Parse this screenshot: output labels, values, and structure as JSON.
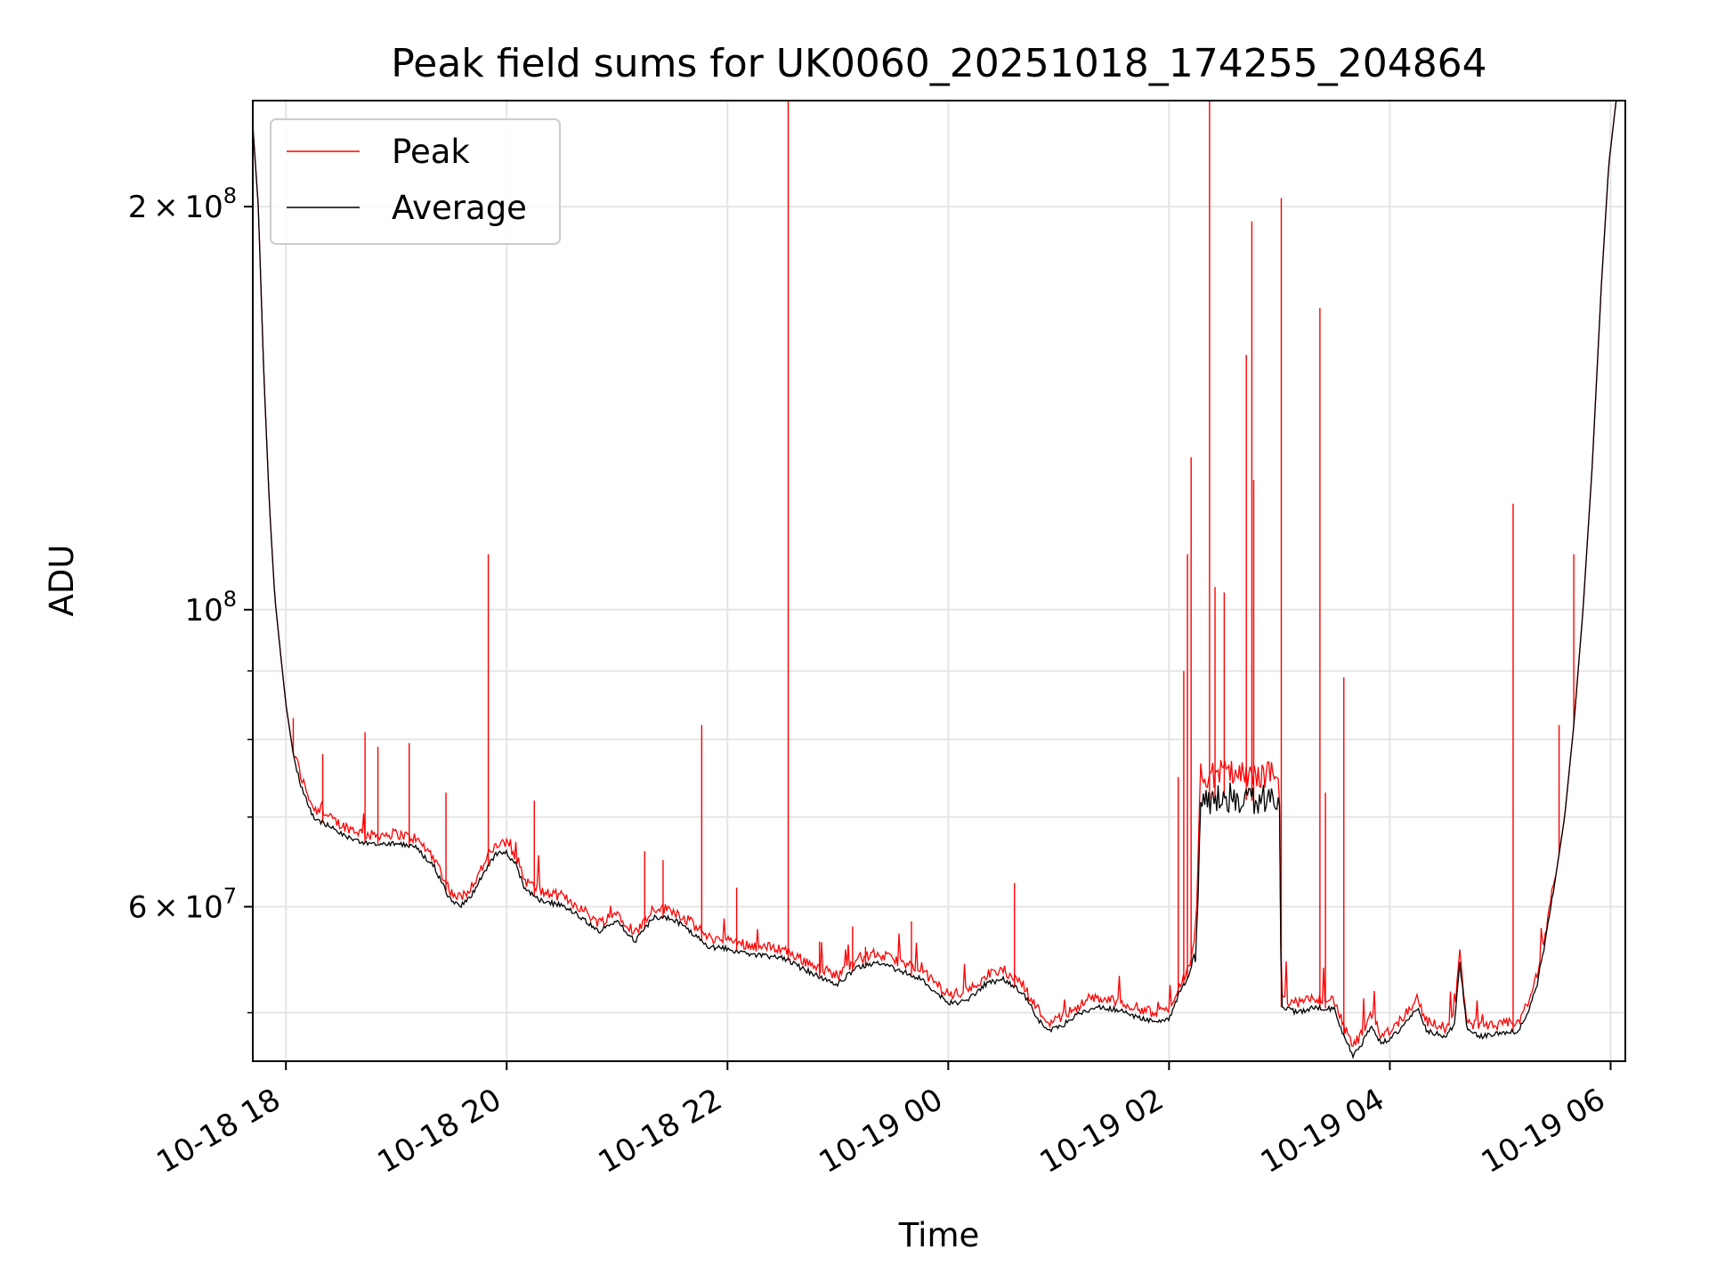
{
  "chart_data": {
    "type": "line",
    "title": "Peak field sums for UK0060_20251018_174255_204864",
    "xlabel": "Time",
    "ylabel": "ADU",
    "x_unit": "datetime",
    "xlim": [
      "2025-10-18 17:42",
      "2025-10-19 06:08"
    ],
    "ylim": [
      46000000,
      240000000
    ],
    "yscale": "log",
    "grid": true,
    "legend_position": "upper-left",
    "x_ticks": [
      {
        "t": "2025-10-18 18:00",
        "label": "10-18 18"
      },
      {
        "t": "2025-10-18 20:00",
        "label": "10-18 20"
      },
      {
        "t": "2025-10-18 22:00",
        "label": "10-18 22"
      },
      {
        "t": "2025-10-19 00:00",
        "label": "10-19 00"
      },
      {
        "t": "2025-10-19 02:00",
        "label": "10-19 02"
      },
      {
        "t": "2025-10-19 04:00",
        "label": "10-19 04"
      },
      {
        "t": "2025-10-19 06:00",
        "label": "10-19 06"
      }
    ],
    "y_major_ticks": [
      {
        "v": 60000000,
        "mantissa": "6",
        "exponent": "7"
      },
      {
        "v": 100000000,
        "mantissa": "",
        "exponent": "8"
      },
      {
        "v": 200000000,
        "mantissa": "2",
        "exponent": "8"
      }
    ],
    "y_minor_ticks": [
      50000000,
      70000000,
      80000000,
      90000000
    ],
    "series": [
      {
        "name": "Average",
        "color": "#000000",
        "points": [
          [
            "2025-10-18 17:42",
            230000000
          ],
          [
            "2025-10-18 17:45",
            200000000
          ],
          [
            "2025-10-18 17:48",
            150000000
          ],
          [
            "2025-10-18 17:51",
            120000000
          ],
          [
            "2025-10-18 17:54",
            102000000
          ],
          [
            "2025-10-18 17:57",
            93000000
          ],
          [
            "2025-10-18 18:00",
            85000000
          ],
          [
            "2025-10-18 18:04",
            78000000
          ],
          [
            "2025-10-18 18:08",
            74000000
          ],
          [
            "2025-10-18 18:15",
            70000000
          ],
          [
            "2025-10-18 18:30",
            68000000
          ],
          [
            "2025-10-18 18:45",
            66800000
          ],
          [
            "2025-10-18 19:00",
            67000000
          ],
          [
            "2025-10-18 19:10",
            66500000
          ],
          [
            "2025-10-18 19:20",
            64500000
          ],
          [
            "2025-10-18 19:30",
            60500000
          ],
          [
            "2025-10-18 19:35",
            60000000
          ],
          [
            "2025-10-18 19:42",
            61500000
          ],
          [
            "2025-10-18 19:50",
            64500000
          ],
          [
            "2025-10-18 19:55",
            65800000
          ],
          [
            "2025-10-18 20:00",
            65800000
          ],
          [
            "2025-10-18 20:05",
            64500000
          ],
          [
            "2025-10-18 20:10",
            61800000
          ],
          [
            "2025-10-18 20:20",
            60500000
          ],
          [
            "2025-10-18 20:30",
            60200000
          ],
          [
            "2025-10-18 20:40",
            59000000
          ],
          [
            "2025-10-18 20:50",
            57500000
          ],
          [
            "2025-10-18 21:00",
            58500000
          ],
          [
            "2025-10-18 21:10",
            56500000
          ],
          [
            "2025-10-18 21:20",
            59000000
          ],
          [
            "2025-10-18 21:30",
            58800000
          ],
          [
            "2025-10-18 21:40",
            57500000
          ],
          [
            "2025-10-18 21:50",
            56000000
          ],
          [
            "2025-10-18 22:00",
            55800000
          ],
          [
            "2025-10-18 22:15",
            55200000
          ],
          [
            "2025-10-18 22:30",
            55000000
          ],
          [
            "2025-10-18 22:40",
            54000000
          ],
          [
            "2025-10-18 22:50",
            53200000
          ],
          [
            "2025-10-18 23:00",
            52500000
          ],
          [
            "2025-10-18 23:10",
            54000000
          ],
          [
            "2025-10-18 23:20",
            54500000
          ],
          [
            "2025-10-18 23:30",
            54000000
          ],
          [
            "2025-10-18 23:45",
            53000000
          ],
          [
            "2025-10-19 00:00",
            50800000
          ],
          [
            "2025-10-19 00:10",
            51000000
          ],
          [
            "2025-10-19 00:20",
            52500000
          ],
          [
            "2025-10-19 00:30",
            53000000
          ],
          [
            "2025-10-19 00:40",
            51800000
          ],
          [
            "2025-10-19 00:50",
            49200000
          ],
          [
            "2025-10-19 00:55",
            48500000
          ],
          [
            "2025-10-19 01:00",
            48700000
          ],
          [
            "2025-10-19 01:10",
            49800000
          ],
          [
            "2025-10-19 01:20",
            50500000
          ],
          [
            "2025-10-19 01:30",
            50300000
          ],
          [
            "2025-10-19 01:40",
            49800000
          ],
          [
            "2025-10-19 01:50",
            49300000
          ],
          [
            "2025-10-19 02:00",
            49400000
          ],
          [
            "2025-10-19 02:05",
            51500000
          ],
          [
            "2025-10-19 02:10",
            53000000
          ],
          [
            "2025-10-19 02:15",
            56000000
          ],
          [
            "2025-10-19 02:17",
            72000000
          ],
          [
            "2025-10-19 02:30",
            72500000
          ],
          [
            "2025-10-19 02:45",
            72000000
          ],
          [
            "2025-10-19 03:00",
            72500000
          ],
          [
            "2025-10-19 03:01",
            50500000
          ],
          [
            "2025-10-19 03:10",
            50000000
          ],
          [
            "2025-10-19 03:20",
            50500000
          ],
          [
            "2025-10-19 03:30",
            50300000
          ],
          [
            "2025-10-19 03:35",
            48000000
          ],
          [
            "2025-10-19 03:40",
            46500000
          ],
          [
            "2025-10-19 03:45",
            47500000
          ],
          [
            "2025-10-19 03:50",
            49000000
          ],
          [
            "2025-10-19 03:55",
            47500000
          ],
          [
            "2025-10-19 04:00",
            47800000
          ],
          [
            "2025-10-19 04:05",
            48500000
          ],
          [
            "2025-10-19 04:10",
            49500000
          ],
          [
            "2025-10-19 04:15",
            50500000
          ],
          [
            "2025-10-19 04:20",
            48500000
          ],
          [
            "2025-10-19 04:30",
            48000000
          ],
          [
            "2025-10-19 04:35",
            49000000
          ],
          [
            "2025-10-19 04:38",
            54500000
          ],
          [
            "2025-10-19 04:42",
            48500000
          ],
          [
            "2025-10-19 04:50",
            48000000
          ],
          [
            "2025-10-19 05:00",
            48200000
          ],
          [
            "2025-10-19 05:10",
            48500000
          ],
          [
            "2025-10-19 05:15",
            50000000
          ],
          [
            "2025-10-19 05:20",
            52500000
          ],
          [
            "2025-10-19 05:25",
            57000000
          ],
          [
            "2025-10-19 05:30",
            63000000
          ],
          [
            "2025-10-19 05:35",
            70000000
          ],
          [
            "2025-10-19 05:40",
            82000000
          ],
          [
            "2025-10-19 05:45",
            100000000
          ],
          [
            "2025-10-19 05:50",
            128000000
          ],
          [
            "2025-10-19 05:55",
            175000000
          ],
          [
            "2025-10-19 05:59",
            215000000
          ],
          [
            "2025-10-19 06:03",
            240000000
          ],
          [
            "2025-10-19 06:08",
            240000000
          ]
        ]
      },
      {
        "name": "Peak",
        "color": "#ff0000",
        "spikes": [
          [
            "2025-10-18 18:04",
            83000000
          ],
          [
            "2025-10-18 18:20",
            78000000
          ],
          [
            "2025-10-18 18:43",
            81000000
          ],
          [
            "2025-10-18 18:50",
            79000000
          ],
          [
            "2025-10-18 19:07",
            79500000
          ],
          [
            "2025-10-18 19:27",
            73000000
          ],
          [
            "2025-10-18 19:50",
            110000000
          ],
          [
            "2025-10-18 20:15",
            72000000
          ],
          [
            "2025-10-18 21:15",
            66000000
          ],
          [
            "2025-10-18 21:25",
            65000000
          ],
          [
            "2025-10-18 21:46",
            82000000
          ],
          [
            "2025-10-18 22:05",
            62000000
          ],
          [
            "2025-10-18 22:33",
            240000000
          ],
          [
            "2025-10-18 22:50",
            56500000
          ],
          [
            "2025-10-18 23:08",
            58000000
          ],
          [
            "2025-10-18 23:15",
            56000000
          ],
          [
            "2025-10-18 23:40",
            58500000
          ],
          [
            "2025-10-19 00:36",
            62500000
          ],
          [
            "2025-10-19 02:05",
            75000000
          ],
          [
            "2025-10-19 02:08",
            90000000
          ],
          [
            "2025-10-19 02:10",
            110000000
          ],
          [
            "2025-10-19 02:12",
            130000000
          ],
          [
            "2025-10-19 02:22",
            240000000
          ],
          [
            "2025-10-19 02:25",
            104000000
          ],
          [
            "2025-10-19 02:30",
            103000000
          ],
          [
            "2025-10-19 02:42",
            155000000
          ],
          [
            "2025-10-19 02:45",
            195000000
          ],
          [
            "2025-10-19 02:46",
            125000000
          ],
          [
            "2025-10-19 03:01",
            203000000
          ],
          [
            "2025-10-19 03:22",
            168000000
          ],
          [
            "2025-10-19 03:25",
            73000000
          ],
          [
            "2025-10-19 03:35",
            89000000
          ],
          [
            "2025-10-19 05:07",
            120000000
          ],
          [
            "2025-10-19 05:32",
            82000000
          ],
          [
            "2025-10-19 05:40",
            110000000
          ]
        ]
      }
    ]
  }
}
